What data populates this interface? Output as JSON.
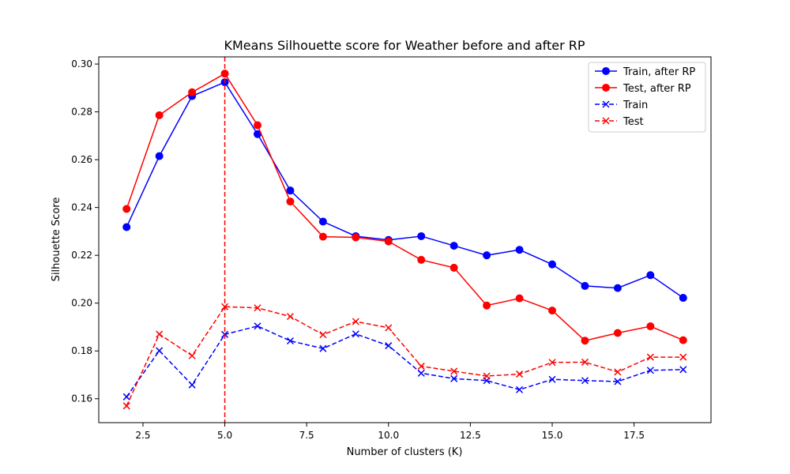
{
  "chart_data": {
    "type": "line",
    "title": "KMeans Silhouette score for Weather before and after RP",
    "xlabel": "Number of clusters (K)",
    "ylabel": "Silhouette Score",
    "xlim": [
      1.15,
      19.85
    ],
    "ylim": [
      0.15,
      0.303
    ],
    "xticks": [
      2.5,
      5.0,
      7.5,
      10.0,
      12.5,
      15.0,
      17.5
    ],
    "xtick_labels": [
      "2.5",
      "5.0",
      "7.5",
      "10.0",
      "12.5",
      "15.0",
      "17.5"
    ],
    "yticks": [
      0.16,
      0.18,
      0.2,
      0.22,
      0.24,
      0.26,
      0.28,
      0.3
    ],
    "ytick_labels": [
      "0.16",
      "0.18",
      "0.20",
      "0.22",
      "0.24",
      "0.26",
      "0.28",
      "0.30"
    ],
    "grid": false,
    "legend_position": "top-right",
    "x": [
      2,
      3,
      4,
      5,
      6,
      7,
      8,
      9,
      10,
      11,
      12,
      13,
      14,
      15,
      16,
      17,
      18,
      19
    ],
    "series": [
      {
        "name": "Train, after RP",
        "color": "#0000ff",
        "linestyle": "solid",
        "marker": "circle",
        "values": [
          0.2318,
          0.2615,
          0.2866,
          0.2924,
          0.2707,
          0.2471,
          0.2341,
          0.228,
          0.2264,
          0.228,
          0.224,
          0.22,
          0.2223,
          0.2162,
          0.2072,
          0.2063,
          0.2117,
          0.2022
        ]
      },
      {
        "name": "Test, after RP",
        "color": "#ff0000",
        "linestyle": "solid",
        "marker": "circle",
        "values": [
          0.2394,
          0.2786,
          0.2882,
          0.296,
          0.2744,
          0.2425,
          0.2278,
          0.2275,
          0.2258,
          0.2181,
          0.2148,
          0.199,
          0.202,
          0.1969,
          0.1843,
          0.1875,
          0.1903,
          0.1845
        ]
      },
      {
        "name": "Train",
        "color": "#0000ff",
        "linestyle": "dashed",
        "marker": "x",
        "values": [
          0.1608,
          0.1801,
          0.1658,
          0.1869,
          0.1904,
          0.1842,
          0.181,
          0.1871,
          0.1822,
          0.1707,
          0.1684,
          0.1676,
          0.1638,
          0.1681,
          0.1676,
          0.1672,
          0.1719,
          0.1722
        ]
      },
      {
        "name": "Test",
        "color": "#ff0000",
        "linestyle": "dashed",
        "marker": "x",
        "values": [
          0.157,
          0.187,
          0.178,
          0.1985,
          0.198,
          0.1944,
          0.1868,
          0.1923,
          0.1897,
          0.1736,
          0.1715,
          0.1695,
          0.1703,
          0.1752,
          0.1753,
          0.1712,
          0.1774,
          0.1774
        ]
      }
    ],
    "annotations": [
      {
        "type": "vline",
        "x": 5,
        "color": "#ff0000",
        "linestyle": "dashed"
      }
    ]
  }
}
